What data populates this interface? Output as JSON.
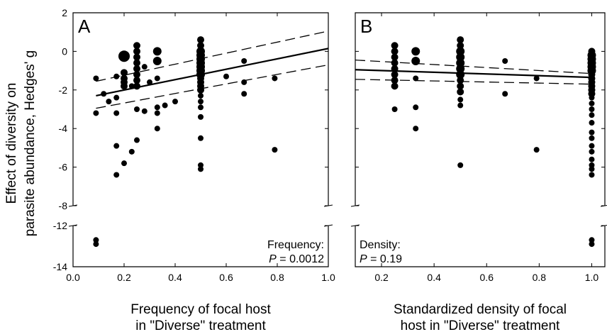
{
  "chart_data": {
    "type": "scatter",
    "ylabel_lines": [
      "Effect of diversity on",
      "parasite abundance, Hedges' g"
    ],
    "panels": [
      {
        "letter": "A",
        "xlabel_lines": [
          "Frequency of focal host",
          "in \"Diverse\" treatment"
        ],
        "xlim": [
          0.0,
          1.0
        ],
        "xticks": [
          0.0,
          0.2,
          0.4,
          0.6,
          0.8,
          1.0
        ],
        "xtick_labels": [
          "0.0",
          "0.2",
          "0.4",
          "0.6",
          "0.8",
          "1.0"
        ],
        "annotation_label": "Frequency:",
        "p_label": "P",
        "p_value": " = 0.0012",
        "fit": {
          "x": [
            0.09,
            1.0
          ],
          "y": [
            -2.3,
            0.15
          ]
        },
        "ci_upper": {
          "x": [
            0.09,
            1.0
          ],
          "y": [
            -1.55,
            1.05
          ]
        },
        "ci_lower": {
          "x": [
            0.09,
            1.0
          ],
          "y": [
            -2.95,
            -0.7
          ]
        },
        "points": [
          [
            0.09,
            -1.4,
            4
          ],
          [
            0.09,
            -3.2,
            4
          ],
          [
            0.09,
            -12.7,
            4
          ],
          [
            0.09,
            -12.9,
            4
          ],
          [
            0.12,
            -2.2,
            4
          ],
          [
            0.14,
            -2.6,
            4
          ],
          [
            0.17,
            -1.3,
            4
          ],
          [
            0.17,
            -2.4,
            4
          ],
          [
            0.17,
            -3.2,
            4
          ],
          [
            0.17,
            -4.9,
            4
          ],
          [
            0.17,
            -6.4,
            4
          ],
          [
            0.2,
            -0.25,
            8
          ],
          [
            0.2,
            -1.1,
            5
          ],
          [
            0.2,
            -1.4,
            5
          ],
          [
            0.2,
            -1.6,
            5
          ],
          [
            0.2,
            -1.8,
            5
          ],
          [
            0.2,
            -5.8,
            4
          ],
          [
            0.23,
            -1.8,
            4
          ],
          [
            0.23,
            -5.2,
            4
          ],
          [
            0.25,
            0.3,
            5
          ],
          [
            0.25,
            0.0,
            5
          ],
          [
            0.25,
            -0.3,
            5
          ],
          [
            0.25,
            -0.6,
            5
          ],
          [
            0.25,
            -0.9,
            5
          ],
          [
            0.25,
            -1.2,
            5
          ],
          [
            0.25,
            -1.5,
            5
          ],
          [
            0.25,
            -1.8,
            5
          ],
          [
            0.25,
            -3.0,
            4
          ],
          [
            0.25,
            -4.6,
            4
          ],
          [
            0.28,
            -0.8,
            4
          ],
          [
            0.28,
            -3.1,
            4
          ],
          [
            0.3,
            -1.6,
            4
          ],
          [
            0.33,
            0.0,
            6
          ],
          [
            0.33,
            -0.5,
            6
          ],
          [
            0.33,
            -1.4,
            4
          ],
          [
            0.33,
            -2.9,
            4
          ],
          [
            0.33,
            -3.2,
            4
          ],
          [
            0.33,
            -4.0,
            4
          ],
          [
            0.36,
            -2.8,
            4
          ],
          [
            0.4,
            -2.6,
            4
          ],
          [
            0.5,
            0.6,
            5
          ],
          [
            0.5,
            0.3,
            5
          ],
          [
            0.5,
            0.0,
            6
          ],
          [
            0.5,
            -0.2,
            6
          ],
          [
            0.5,
            -0.4,
            6
          ],
          [
            0.5,
            -0.6,
            6
          ],
          [
            0.5,
            -0.8,
            6
          ],
          [
            0.5,
            -1.0,
            6
          ],
          [
            0.5,
            -1.2,
            6
          ],
          [
            0.5,
            -1.4,
            5
          ],
          [
            0.5,
            -1.6,
            5
          ],
          [
            0.5,
            -1.8,
            5
          ],
          [
            0.5,
            -2.0,
            5
          ],
          [
            0.5,
            -2.3,
            4
          ],
          [
            0.5,
            -2.6,
            4
          ],
          [
            0.5,
            -2.9,
            4
          ],
          [
            0.5,
            -3.4,
            4
          ],
          [
            0.5,
            -4.5,
            4
          ],
          [
            0.5,
            -5.9,
            4
          ],
          [
            0.5,
            -6.1,
            4
          ],
          [
            0.6,
            -1.3,
            4
          ],
          [
            0.67,
            -0.5,
            4
          ],
          [
            0.67,
            -1.6,
            4
          ],
          [
            0.67,
            -2.2,
            4
          ],
          [
            0.79,
            -1.4,
            4
          ],
          [
            0.79,
            -5.1,
            4
          ]
        ]
      },
      {
        "letter": "B",
        "xlabel_lines": [
          "Standardized density of focal",
          "host in \"Diverse\" treatment"
        ],
        "xlim": [
          0.1,
          1.05
        ],
        "xticks": [
          0.2,
          0.4,
          0.6,
          0.8,
          1.0
        ],
        "xtick_labels": [
          "0.2",
          "0.4",
          "0.6",
          "0.8",
          "1.0"
        ],
        "annotation_label": "Density:",
        "p_label": "P",
        "p_value": " = 0.19",
        "fit": {
          "x": [
            0.1,
            1.0
          ],
          "y": [
            -0.95,
            -1.35
          ]
        },
        "ci_upper": {
          "x": [
            0.1,
            1.0
          ],
          "y": [
            -0.45,
            -1.15
          ]
        },
        "ci_lower": {
          "x": [
            0.1,
            1.0
          ],
          "y": [
            -1.45,
            -1.7
          ]
        },
        "points": [
          [
            0.25,
            0.3,
            5
          ],
          [
            0.25,
            0.0,
            5
          ],
          [
            0.25,
            -0.3,
            5
          ],
          [
            0.25,
            -0.6,
            5
          ],
          [
            0.25,
            -0.9,
            5
          ],
          [
            0.25,
            -1.2,
            5
          ],
          [
            0.25,
            -1.5,
            5
          ],
          [
            0.25,
            -1.8,
            5
          ],
          [
            0.25,
            -3.0,
            4
          ],
          [
            0.33,
            0.0,
            6
          ],
          [
            0.33,
            -0.5,
            6
          ],
          [
            0.33,
            -1.4,
            4
          ],
          [
            0.33,
            -2.9,
            4
          ],
          [
            0.33,
            -4.0,
            4
          ],
          [
            0.5,
            0.6,
            5
          ],
          [
            0.5,
            0.3,
            5
          ],
          [
            0.5,
            0.0,
            6
          ],
          [
            0.5,
            -0.3,
            6
          ],
          [
            0.5,
            -0.6,
            6
          ],
          [
            0.5,
            -0.9,
            6
          ],
          [
            0.5,
            -1.2,
            6
          ],
          [
            0.5,
            -1.5,
            5
          ],
          [
            0.5,
            -1.8,
            5
          ],
          [
            0.5,
            -2.1,
            5
          ],
          [
            0.5,
            -2.5,
            4
          ],
          [
            0.5,
            -2.8,
            4
          ],
          [
            0.5,
            -5.9,
            4
          ],
          [
            0.67,
            -0.5,
            4
          ],
          [
            0.67,
            -2.2,
            4
          ],
          [
            0.79,
            -1.4,
            4
          ],
          [
            0.79,
            -5.1,
            4
          ],
          [
            1.0,
            0.0,
            5
          ],
          [
            1.0,
            -0.2,
            6
          ],
          [
            1.0,
            -0.4,
            6
          ],
          [
            1.0,
            -0.6,
            6
          ],
          [
            1.0,
            -0.8,
            6
          ],
          [
            1.0,
            -1.0,
            6
          ],
          [
            1.0,
            -1.2,
            5
          ],
          [
            1.0,
            -1.4,
            5
          ],
          [
            1.0,
            -1.6,
            5
          ],
          [
            1.0,
            -1.8,
            5
          ],
          [
            1.0,
            -2.0,
            5
          ],
          [
            1.0,
            -2.2,
            5
          ],
          [
            1.0,
            -2.4,
            4
          ],
          [
            1.0,
            -2.7,
            4
          ],
          [
            1.0,
            -3.0,
            4
          ],
          [
            1.0,
            -3.3,
            4
          ],
          [
            1.0,
            -3.7,
            4
          ],
          [
            1.0,
            -4.2,
            4
          ],
          [
            1.0,
            -4.5,
            4
          ],
          [
            1.0,
            -4.9,
            4
          ],
          [
            1.0,
            -5.2,
            4
          ],
          [
            1.0,
            -5.6,
            4
          ],
          [
            1.0,
            -5.9,
            4
          ],
          [
            1.0,
            -6.1,
            4
          ],
          [
            1.0,
            -6.4,
            4
          ],
          [
            1.0,
            -12.7,
            4
          ],
          [
            1.0,
            -12.9,
            4
          ]
        ]
      }
    ],
    "y_upper": {
      "range": [
        -8,
        2
      ],
      "ticks": [
        2,
        0,
        -2,
        -4,
        -6,
        -8
      ],
      "tick_labels": [
        "2",
        "0",
        "-2",
        "-4",
        "-6",
        "-8"
      ]
    },
    "y_lower": {
      "range": [
        -14,
        -12
      ],
      "ticks": [
        -12,
        -14
      ],
      "tick_labels": [
        "-12",
        "-14"
      ]
    },
    "axis_break": true,
    "grid": false,
    "legend": "none"
  }
}
